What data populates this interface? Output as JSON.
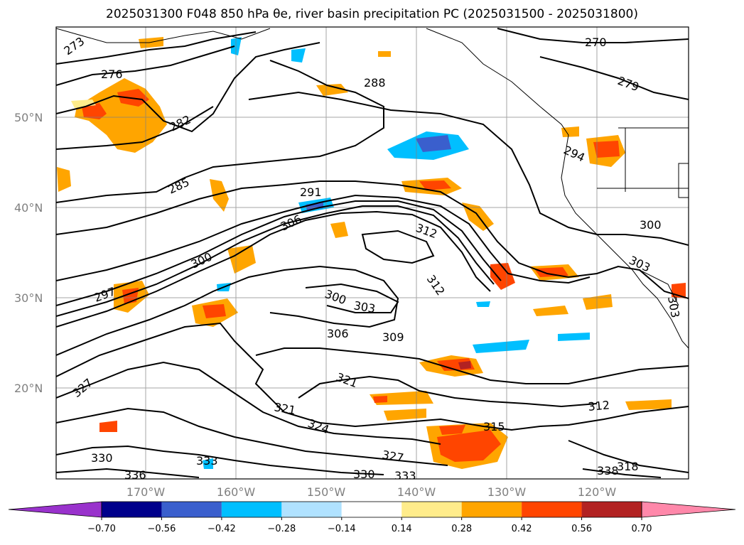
{
  "title": "2025031300 F048 850 hPa θe, river basin precipitation PC (2025031500 - 2025031800)",
  "map": {
    "lat_labels": [
      "50°N",
      "40°N",
      "30°N",
      "20°N"
    ],
    "lon_labels": [
      "170°W",
      "160°W",
      "150°W",
      "140°W",
      "130°W",
      "120°W"
    ],
    "contour_labels": [
      "273",
      "276",
      "282",
      "285",
      "291",
      "288",
      "270",
      "279",
      "294",
      "300",
      "297",
      "306",
      "312",
      "312",
      "300",
      "303",
      "306",
      "309",
      "303",
      "300",
      "303",
      "327",
      "321",
      "321",
      "324",
      "327",
      "330",
      "333",
      "330",
      "336",
      "333",
      "315",
      "312",
      "338",
      "318"
    ]
  },
  "colorbar": {
    "ticks": [
      "−0.70",
      "−0.56",
      "−0.42",
      "−0.28",
      "−0.14",
      "0.14",
      "0.28",
      "0.42",
      "0.56",
      "0.70"
    ],
    "colors": [
      "#9932cc",
      "#00008b",
      "#3a5fcd",
      "#00bfff",
      "#b0e2ff",
      "#ffffff",
      "#ffec8b",
      "#ffa500",
      "#ff4500",
      "#b22222",
      "#ff88aa"
    ]
  },
  "chart_data": {
    "type": "map",
    "variable": "850 hPa θe",
    "shading": "river basin precipitation PC",
    "lat_range": [
      10,
      60
    ],
    "lon_range": [
      -180,
      -110
    ],
    "colorbar_levels": [
      -0.7,
      -0.56,
      -0.42,
      -0.28,
      -0.14,
      0.14,
      0.28,
      0.42,
      0.56,
      0.7
    ]
  }
}
